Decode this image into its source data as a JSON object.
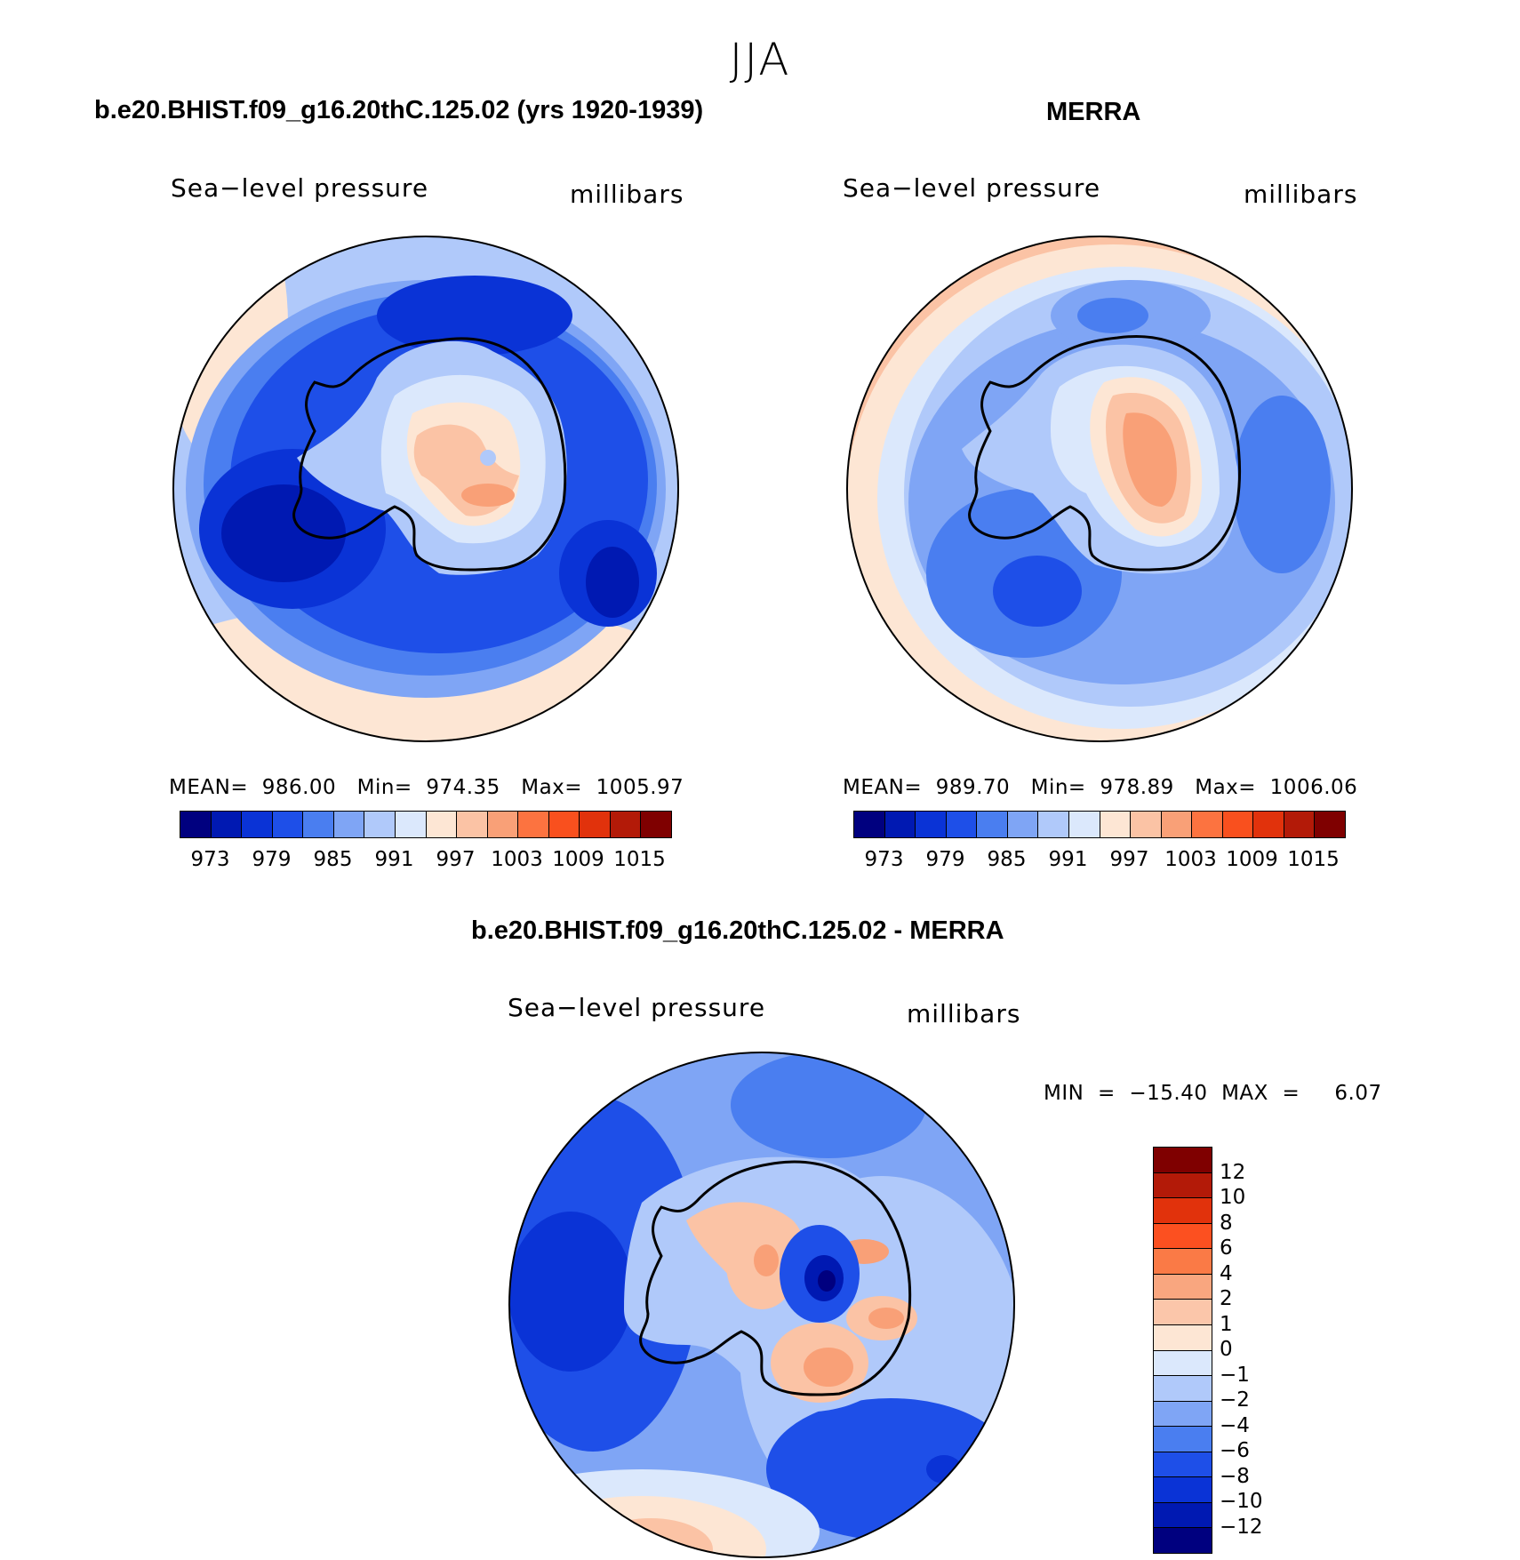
{
  "figure": {
    "season": "JJA",
    "model_title": "b.e20.BHIST.f09_g16.20thC.125.02 (yrs 1920-1939)",
    "obs_title": "MERRA",
    "diff_title": "b.e20.BHIST.f09_g16.20thC.125.02 - MERRA",
    "variable": "Sea−level pressure",
    "units": "millibars"
  },
  "model_panel": {
    "mean_text": "MEAN=  986.00   Min=  974.35   Max=  1005.97"
  },
  "obs_panel": {
    "mean_text": "MEAN=  989.70   Min=  978.89   Max=  1006.06"
  },
  "diff_panel": {
    "minmax_text": "MIN  =  −15.40  MAX  =     6.07"
  },
  "colorbar_levels": {
    "tick_labels": [
      "973",
      "979",
      "985",
      "991",
      "997",
      "1003",
      "1009",
      "1015"
    ],
    "colors": [
      "#00007f",
      "#0019b2",
      "#0a33d6",
      "#1e4fe8",
      "#4a7ef0",
      "#7fa5f5",
      "#b0c9fa",
      "#dbe8fc",
      "#fde6d4",
      "#fbc3a5",
      "#f9a077",
      "#fc7340",
      "#f9501e",
      "#e1320c",
      "#b31a08",
      "#7f0000"
    ]
  },
  "diff_colorbar": {
    "tick_labels": [
      "12",
      "10",
      "8",
      "6",
      "4",
      "2",
      "1",
      "0",
      "−1",
      "−2",
      "−4",
      "−6",
      "−8",
      "−10",
      "−12"
    ],
    "colors": [
      "#7f0000",
      "#b31a08",
      "#e1320c",
      "#fc5020",
      "#fa7a46",
      "#f9a67f",
      "#fbc6aa",
      "#fde6d4",
      "#dbe8fc",
      "#b0c9fa",
      "#7fa5f5",
      "#4a7ef0",
      "#1e4fe8",
      "#0a33d6",
      "#0019b2",
      "#00007f"
    ]
  },
  "chart_data": [
    {
      "type": "map",
      "title": "b.e20.BHIST.f09_g16.20thC.125.02 (yrs 1920-1939)",
      "field": "Sea-level pressure",
      "units": "millibars",
      "projection": "south polar stereographic",
      "mean": 986.0,
      "min": 974.35,
      "max": 1005.97,
      "contour_levels": [
        973,
        976,
        979,
        982,
        985,
        988,
        991,
        994,
        997,
        1000,
        1003,
        1006,
        1009,
        1012,
        1015
      ]
    },
    {
      "type": "map",
      "title": "MERRA",
      "field": "Sea-level pressure",
      "units": "millibars",
      "projection": "south polar stereographic",
      "mean": 989.7,
      "min": 978.89,
      "max": 1006.06,
      "contour_levels": [
        973,
        976,
        979,
        982,
        985,
        988,
        991,
        994,
        997,
        1000,
        1003,
        1006,
        1009,
        1012,
        1015
      ]
    },
    {
      "type": "map",
      "title": "b.e20.BHIST.f09_g16.20thC.125.02 - MERRA",
      "field": "Sea-level pressure difference",
      "units": "millibars",
      "projection": "south polar stereographic",
      "min": -15.4,
      "max": 6.07,
      "contour_levels": [
        -12,
        -10,
        -8,
        -6,
        -4,
        -2,
        -1,
        0,
        1,
        2,
        4,
        6,
        8,
        10,
        12
      ]
    }
  ]
}
